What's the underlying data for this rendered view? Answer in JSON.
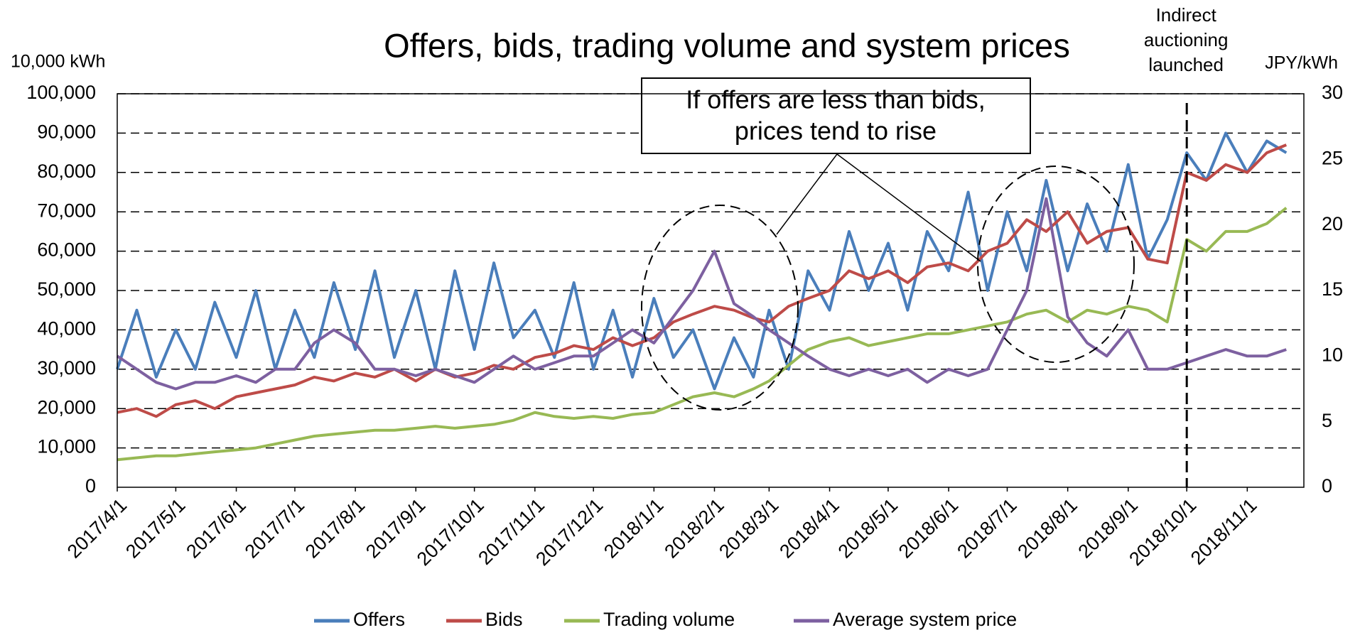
{
  "chart_data": {
    "type": "line",
    "title": "Offers, bids, trading volume and system prices",
    "y_label": "10,000 kWh",
    "y2_label": "JPY/kWh",
    "annotations": [
      {
        "lines": [
          "Indirect",
          "auctioning",
          "launched"
        ],
        "x": "2018/10/1"
      },
      {
        "lines": [
          "If offers are less than bids,",
          "prices tend to rise"
        ]
      }
    ],
    "x": [
      "2017/4/1",
      "2017/4/11",
      "2017/4/21",
      "2017/5/1",
      "2017/5/11",
      "2017/5/21",
      "2017/6/1",
      "2017/6/11",
      "2017/6/21",
      "2017/7/1",
      "2017/7/11",
      "2017/7/21",
      "2017/8/1",
      "2017/8/11",
      "2017/8/21",
      "2017/9/1",
      "2017/9/11",
      "2017/9/21",
      "2017/10/1",
      "2017/10/11",
      "2017/10/21",
      "2017/11/1",
      "2017/11/11",
      "2017/11/21",
      "2017/12/1",
      "2017/12/11",
      "2017/12/21",
      "2018/1/1",
      "2018/1/11",
      "2018/1/21",
      "2018/2/1",
      "2018/2/11",
      "2018/2/21",
      "2018/3/1",
      "2018/3/11",
      "2018/3/21",
      "2018/4/1",
      "2018/4/11",
      "2018/4/21",
      "2018/5/1",
      "2018/5/11",
      "2018/5/21",
      "2018/6/1",
      "2018/6/11",
      "2018/6/21",
      "2018/7/1",
      "2018/7/11",
      "2018/7/21",
      "2018/8/1",
      "2018/8/11",
      "2018/8/21",
      "2018/9/1",
      "2018/9/11",
      "2018/9/21",
      "2018/10/1",
      "2018/10/11",
      "2018/10/21",
      "2018/11/1",
      "2018/11/11",
      "2018/11/21"
    ],
    "series": [
      {
        "name": "Offers",
        "color": "#4a7ebb",
        "values": [
          30000,
          45000,
          28000,
          40000,
          30000,
          47000,
          33000,
          50000,
          30000,
          45000,
          33000,
          52000,
          35000,
          55000,
          33000,
          50000,
          30000,
          55000,
          35000,
          57000,
          38000,
          45000,
          33000,
          52000,
          30000,
          45000,
          28000,
          48000,
          33000,
          40000,
          25000,
          38000,
          28000,
          45000,
          30000,
          55000,
          45000,
          65000,
          50000,
          62000,
          45000,
          65000,
          55000,
          75000,
          50000,
          70000,
          55000,
          78000,
          55000,
          72000,
          60000,
          82000,
          58000,
          68000,
          85000,
          78000,
          90000,
          80000,
          88000,
          85000
        ]
      },
      {
        "name": "Bids",
        "color": "#be4b48",
        "values": [
          19000,
          20000,
          18000,
          21000,
          22000,
          20000,
          23000,
          24000,
          25000,
          26000,
          28000,
          27000,
          29000,
          28000,
          30000,
          27000,
          30000,
          28000,
          29000,
          31000,
          30000,
          33000,
          34000,
          36000,
          35000,
          38000,
          36000,
          38000,
          42000,
          44000,
          46000,
          45000,
          43000,
          42000,
          46000,
          48000,
          50000,
          55000,
          53000,
          55000,
          52000,
          56000,
          57000,
          55000,
          60000,
          62000,
          68000,
          65000,
          70000,
          62000,
          65000,
          66000,
          58000,
          57000,
          80000,
          78000,
          82000,
          80000,
          85000,
          87000
        ]
      },
      {
        "name": "Trading volume",
        "color": "#98b954",
        "values": [
          7000,
          7500,
          8000,
          8000,
          8500,
          9000,
          9500,
          10000,
          11000,
          12000,
          13000,
          13500,
          14000,
          14500,
          14500,
          15000,
          15500,
          15000,
          15500,
          16000,
          17000,
          19000,
          18000,
          17500,
          18000,
          17500,
          18500,
          19000,
          21000,
          23000,
          24000,
          23000,
          25000,
          27000,
          31000,
          35000,
          37000,
          38000,
          36000,
          37000,
          38000,
          39000,
          39000,
          40000,
          41000,
          42000,
          44000,
          45000,
          42000,
          45000,
          44000,
          46000,
          45000,
          42000,
          63000,
          60000,
          65000,
          65000,
          67000,
          71000
        ]
      },
      {
        "name": "Average system price",
        "color": "#7d60a0",
        "axis": "y2",
        "values": [
          10,
          9,
          8,
          7.5,
          8,
          8,
          8.5,
          8,
          9,
          9,
          11,
          12,
          11,
          9,
          9,
          8.5,
          9,
          8.5,
          8,
          9,
          10,
          9,
          9.5,
          10,
          10,
          11,
          12,
          11,
          13,
          15,
          18,
          14,
          13,
          12,
          11,
          10,
          9,
          8.5,
          9,
          8.5,
          9,
          8,
          9,
          8.5,
          9,
          12,
          15,
          22,
          13,
          11,
          10,
          12,
          9,
          9,
          9.5,
          10,
          10.5,
          10,
          10,
          10.5
        ]
      }
    ],
    "xlim": [
      "2017/4/1",
      "2018/11/30"
    ],
    "xticks": [
      "2017/4/1",
      "2017/5/1",
      "2017/6/1",
      "2017/7/1",
      "2017/8/1",
      "2017/9/1",
      "2017/10/1",
      "2017/11/1",
      "2017/12/1",
      "2018/1/1",
      "2018/2/1",
      "2018/3/1",
      "2018/4/1",
      "2018/5/1",
      "2018/6/1",
      "2018/7/1",
      "2018/8/1",
      "2018/9/1",
      "2018/10/1",
      "2018/11/1"
    ],
    "ylim": [
      0,
      100000
    ],
    "yticks": [
      0,
      {
        "value": 10000,
        "label": "10,000"
      },
      {
        "value": 20000,
        "label": "20,000"
      },
      {
        "value": 30000,
        "label": "30,000"
      },
      {
        "value": 40000,
        "label": "40,000"
      },
      {
        "value": 50000,
        "label": "50,000"
      },
      {
        "value": 60000,
        "label": "60,000"
      },
      {
        "value": 70000,
        "label": "70,000"
      },
      {
        "value": 80000,
        "label": "80,000"
      },
      {
        "value": 90000,
        "label": "90,000"
      },
      {
        "value": 100000,
        "label": "100,000"
      }
    ],
    "y2lim": [
      0,
      30
    ],
    "y2ticks": [
      0,
      5,
      10,
      15,
      20,
      25,
      30
    ],
    "grid": true,
    "legend": "bottom"
  }
}
